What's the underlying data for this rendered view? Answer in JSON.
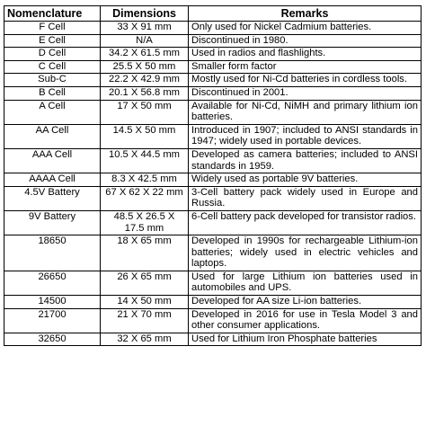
{
  "table": {
    "headers": [
      "Nomenclature",
      "Dimensions",
      "Remarks"
    ],
    "rows": [
      {
        "name": "F Cell",
        "dimensions": "33 X 91 mm",
        "remarks": "Only used for Nickel Cadmium batteries."
      },
      {
        "name": "E Cell",
        "dimensions": "N/A",
        "remarks": "Discontinued in 1980."
      },
      {
        "name": "D Cell",
        "dimensions": "34.2 X 61.5  mm",
        "remarks": "Used in radios and flashlights."
      },
      {
        "name": "C Cell",
        "dimensions": "25.5 X 50 mm",
        "remarks": "Smaller form factor"
      },
      {
        "name": "Sub-C",
        "dimensions": "22.2 X 42.9 mm",
        "remarks": "Mostly used for Ni-Cd batteries in cordless tools."
      },
      {
        "name": "B Cell",
        "dimensions": "20.1 X 56.8 mm",
        "remarks": "Discontinued in 2001."
      },
      {
        "name": "A Cell",
        "dimensions": "17 X 50 mm",
        "remarks": "Available for Ni-Cd, NiMH and primary lithium ion batteries."
      },
      {
        "name": "AA Cell",
        "dimensions": "14.5 X 50 mm",
        "remarks": "Introduced in 1907; included to ANSI standards in 1947; widely used in portable devices."
      },
      {
        "name": "AAA Cell",
        "dimensions": "10.5 X 44.5 mm",
        "remarks": "Developed as camera batteries; included to ANSI standards in 1959."
      },
      {
        "name": "AAAA Cell",
        "dimensions": "8.3 X 42.5 mm",
        "remarks": "Widely used as portable 9V batteries."
      },
      {
        "name": "4.5V Battery",
        "dimensions": "67 X 62 X 22 mm",
        "remarks": "3-Cell battery pack widely used in Europe and Russia."
      },
      {
        "name": "9V Battery",
        "dimensions": "48.5 X 26.5 X 17.5 mm",
        "remarks": "6-Cell battery pack developed for transistor radios."
      },
      {
        "name": "18650",
        "dimensions": "18 X 65 mm",
        "remarks": "Developed in 1990s for rechargeable Lithium-ion batteries; widely used in electric vehicles and laptops."
      },
      {
        "name": "26650",
        "dimensions": "26 X 65 mm",
        "remarks": "Used for large Lithium ion batteries used in automobiles and UPS."
      },
      {
        "name": "14500",
        "dimensions": "14 X 50 mm",
        "remarks": "Developed for AA size Li-ion batteries."
      },
      {
        "name": "21700",
        "dimensions": "21 X 70 mm",
        "remarks": "Developed in 2016 for use in Tesla Model 3 and other consumer applications."
      },
      {
        "name": "32650",
        "dimensions": "32 X 65 mm",
        "remarks": "Used for Lithium Iron Phosphate batteries"
      }
    ]
  }
}
